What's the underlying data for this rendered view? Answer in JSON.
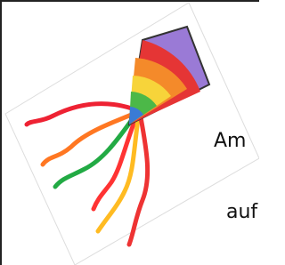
{
  "text_lines": [
    "Am",
    "auf"
  ]
}
